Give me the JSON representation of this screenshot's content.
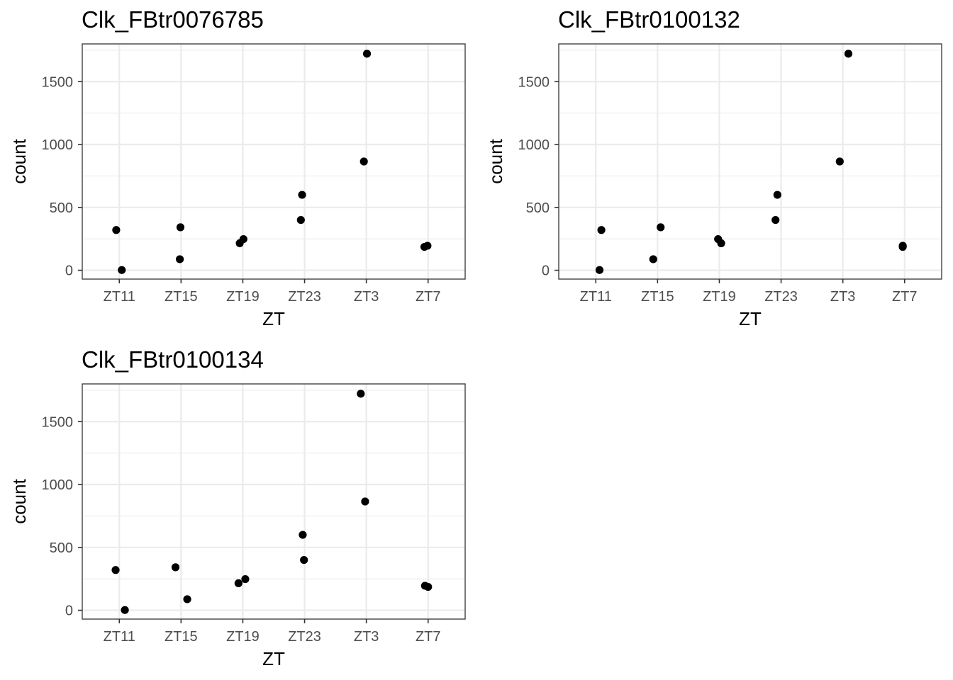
{
  "chart_data": [
    {
      "type": "scatter",
      "title": "Clk_FBtr0076785",
      "xlabel": "ZT",
      "ylabel": "count",
      "categories": [
        "ZT11",
        "ZT15",
        "ZT19",
        "ZT23",
        "ZT3",
        "ZT7"
      ],
      "ylim": [
        -70,
        1800
      ],
      "yticks": [
        0,
        500,
        1000,
        1500
      ],
      "yticklabels": [
        "0",
        "500",
        "1000",
        "1500"
      ],
      "points": [
        {
          "x": "ZT11",
          "jitter": -0.05,
          "y": 320
        },
        {
          "x": "ZT11",
          "jitter": 0.04,
          "y": 2
        },
        {
          "x": "ZT15",
          "jitter": -0.02,
          "y": 88
        },
        {
          "x": "ZT15",
          "jitter": -0.01,
          "y": 342
        },
        {
          "x": "ZT19",
          "jitter": -0.05,
          "y": 215
        },
        {
          "x": "ZT19",
          "jitter": 0.01,
          "y": 248
        },
        {
          "x": "ZT23",
          "jitter": -0.06,
          "y": 400
        },
        {
          "x": "ZT23",
          "jitter": -0.04,
          "y": 600
        },
        {
          "x": "ZT3",
          "jitter": -0.04,
          "y": 865
        },
        {
          "x": "ZT3",
          "jitter": 0.01,
          "y": 1722
        },
        {
          "x": "ZT7",
          "jitter": -0.06,
          "y": 186
        },
        {
          "x": "ZT7",
          "jitter": -0.01,
          "y": 195
        }
      ],
      "grid": true,
      "legend": "none"
    },
    {
      "type": "scatter",
      "title": "Clk_FBtr0100132",
      "xlabel": "ZT",
      "ylabel": "count",
      "categories": [
        "ZT11",
        "ZT15",
        "ZT19",
        "ZT23",
        "ZT3",
        "ZT7"
      ],
      "ylim": [
        -70,
        1800
      ],
      "yticks": [
        0,
        500,
        1000,
        1500
      ],
      "yticklabels": [
        "0",
        "500",
        "1000",
        "1500"
      ],
      "points": [
        {
          "x": "ZT11",
          "jitter": 0.09,
          "y": 320
        },
        {
          "x": "ZT11",
          "jitter": 0.06,
          "y": 2
        },
        {
          "x": "ZT15",
          "jitter": -0.07,
          "y": 88
        },
        {
          "x": "ZT15",
          "jitter": 0.05,
          "y": 342
        },
        {
          "x": "ZT19",
          "jitter": -0.02,
          "y": 248
        },
        {
          "x": "ZT19",
          "jitter": 0.03,
          "y": 215
        },
        {
          "x": "ZT23",
          "jitter": -0.09,
          "y": 400
        },
        {
          "x": "ZT23",
          "jitter": -0.06,
          "y": 600
        },
        {
          "x": "ZT3",
          "jitter": -0.05,
          "y": 865
        },
        {
          "x": "ZT3",
          "jitter": 0.09,
          "y": 1722
        },
        {
          "x": "ZT7",
          "jitter": -0.03,
          "y": 186
        },
        {
          "x": "ZT7",
          "jitter": -0.03,
          "y": 195
        }
      ],
      "grid": true,
      "legend": "none"
    },
    {
      "type": "scatter",
      "title": "Clk_FBtr0100134",
      "xlabel": "ZT",
      "ylabel": "count",
      "categories": [
        "ZT11",
        "ZT15",
        "ZT19",
        "ZT23",
        "ZT3",
        "ZT7"
      ],
      "ylim": [
        -70,
        1800
      ],
      "yticks": [
        0,
        500,
        1000,
        1500
      ],
      "yticklabels": [
        "0",
        "500",
        "1000",
        "1500"
      ],
      "points": [
        {
          "x": "ZT11",
          "jitter": -0.06,
          "y": 320
        },
        {
          "x": "ZT11",
          "jitter": 0.09,
          "y": 2
        },
        {
          "x": "ZT15",
          "jitter": -0.09,
          "y": 342
        },
        {
          "x": "ZT15",
          "jitter": 0.1,
          "y": 88
        },
        {
          "x": "ZT19",
          "jitter": -0.07,
          "y": 215
        },
        {
          "x": "ZT19",
          "jitter": 0.04,
          "y": 248
        },
        {
          "x": "ZT23",
          "jitter": -0.03,
          "y": 600
        },
        {
          "x": "ZT23",
          "jitter": -0.01,
          "y": 400
        },
        {
          "x": "ZT3",
          "jitter": -0.09,
          "y": 1722
        },
        {
          "x": "ZT3",
          "jitter": -0.02,
          "y": 865
        },
        {
          "x": "ZT7",
          "jitter": -0.05,
          "y": 195
        },
        {
          "x": "ZT7",
          "jitter": 0.0,
          "y": 186
        }
      ],
      "grid": true,
      "legend": "none"
    }
  ]
}
